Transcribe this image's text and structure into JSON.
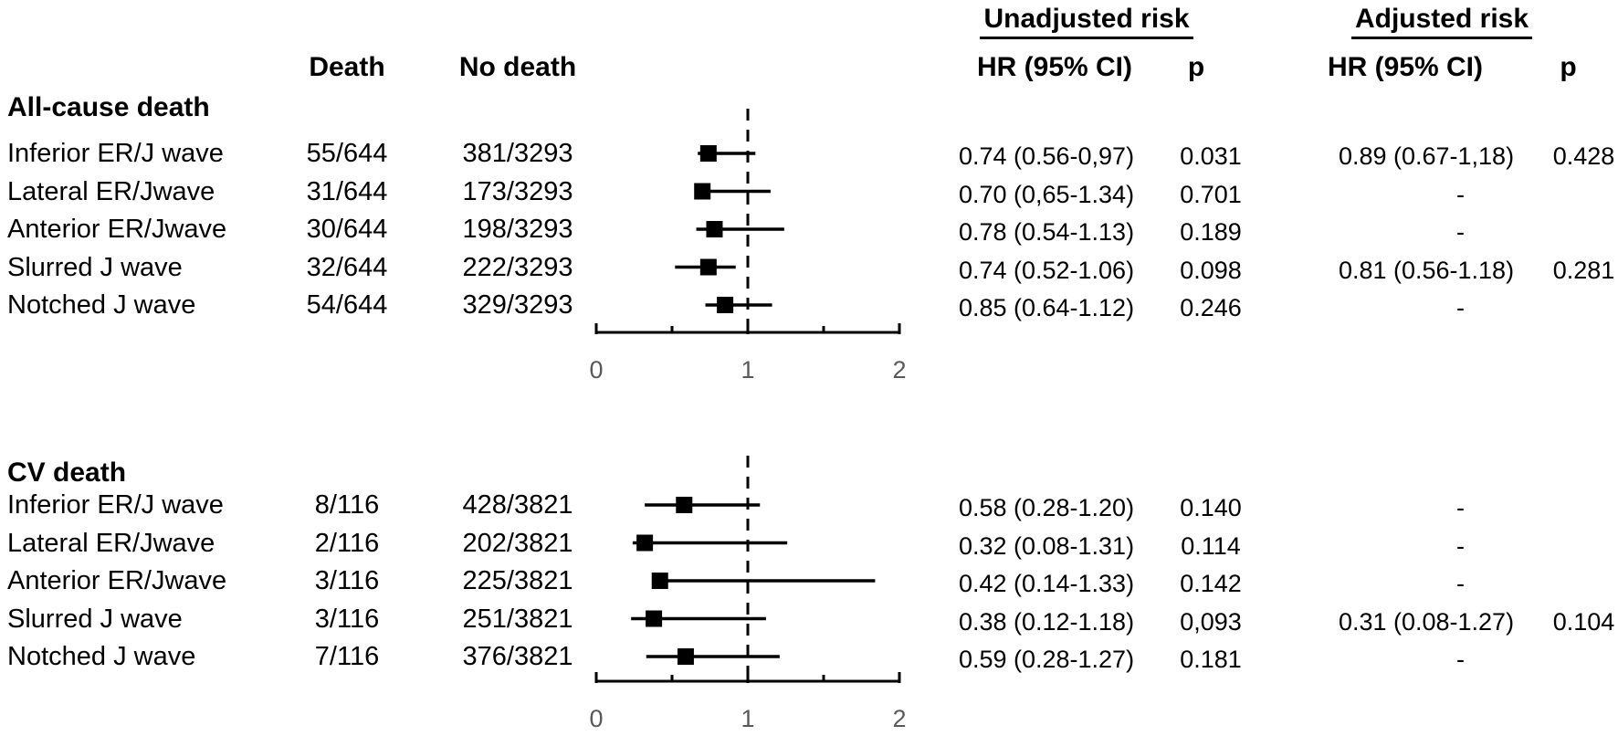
{
  "figure": {
    "type": "forest-plot-table",
    "background": "#ffffff"
  },
  "column_headers": {
    "death": "Death",
    "no_death": "No death",
    "unadjusted_group": "Unadjusted risk",
    "adjusted_group": "Adjusted risk",
    "hr_ci_unadjusted": "HR (95% CI)",
    "p_unadjusted": "p",
    "hr_ci_adjusted": "HR (95% CI)",
    "p_adjusted": "p"
  },
  "sections": [
    {
      "header": "All-cause death",
      "rows": [
        {
          "label": "Inferior ER/J wave",
          "death": "55/644",
          "no_death": "381/3293",
          "unadj_hr": "0.74 (0.56-0,97)",
          "unadj_p": "0.031",
          "adj_hr": "0.89 (0.67-1,18)",
          "adj_p": "0.428"
        },
        {
          "label": "Lateral ER/Jwave",
          "death": "31/644",
          "no_death": "173/3293",
          "unadj_hr": "0.70 (0,65-1.34)",
          "unadj_p": "0.701",
          "adj_hr": "-",
          "adj_p": ""
        },
        {
          "label": "Anterior ER/Jwave",
          "death": "30/644",
          "no_death": "198/3293",
          "unadj_hr": "0.78 (0.54-1.13)",
          "unadj_p": "0.189",
          "adj_hr": "-",
          "adj_p": ""
        },
        {
          "label": "Slurred J wave",
          "death": "32/644",
          "no_death": "222/3293",
          "unadj_hr": "0.74 (0.52-1.06)",
          "unadj_p": "0.098",
          "adj_hr": "0.81 (0.56-1.18)",
          "adj_p": "0.281"
        },
        {
          "label": "Notched J wave",
          "death": "54/644",
          "no_death": "329/3293",
          "unadj_hr": "0.85 (0.64-1.12)",
          "unadj_p": "0.246",
          "adj_hr": "-",
          "adj_p": ""
        }
      ]
    },
    {
      "header": "CV death",
      "rows": [
        {
          "label": "Inferior ER/J wave",
          "death": "8/116",
          "no_death": "428/3821",
          "unadj_hr": "0.58 (0.28-1.20)",
          "unadj_p": "0.140",
          "adj_hr": "-",
          "adj_p": ""
        },
        {
          "label": "Lateral ER/Jwave",
          "death": "2/116",
          "no_death": "202/3821",
          "unadj_hr": "0.32 (0.08-1.31)",
          "unadj_p": "0.114",
          "adj_hr": "-",
          "adj_p": ""
        },
        {
          "label": "Anterior ER/Jwave",
          "death": "3/116",
          "no_death": "225/3821",
          "unadj_hr": "0.42 (0.14-1.33)",
          "unadj_p": "0.142",
          "adj_hr": "-",
          "adj_p": ""
        },
        {
          "label": "Slurred J wave",
          "death": "3/116",
          "no_death": "251/3821",
          "unadj_hr": "0.38 (0.12-1.18)",
          "unadj_p": "0,093",
          "adj_hr": "0.31 (0.08-1.27)",
          "adj_p": "0.104"
        },
        {
          "label": "Notched J wave",
          "death": "7/116",
          "no_death": "376/3821",
          "unadj_hr": "0.59 (0.28-1.27)",
          "unadj_p": "0.181",
          "adj_hr": "-",
          "adj_p": ""
        }
      ]
    }
  ],
  "chart_data": [
    {
      "type": "forest",
      "title": "All-cause death",
      "x_axis": {
        "min": 0,
        "max": 2,
        "tick_labels": [
          "0",
          "1",
          "2"
        ],
        "minor_ticks": [
          0.5,
          1.5
        ],
        "reference_line": 1,
        "grid": false
      },
      "points": [
        {
          "label": "Inferior ER/J wave",
          "hr": 0.74,
          "ci_low": 0.56,
          "ci_high": 0.97,
          "drawn_low": 0.67,
          "drawn_high": 1.05
        },
        {
          "label": "Lateral ER/Jwave",
          "hr": 0.7,
          "ci_low": 0.65,
          "ci_high": 1.34,
          "drawn_low": 0.65,
          "drawn_high": 1.15
        },
        {
          "label": "Anterior ER/Jwave",
          "hr": 0.78,
          "ci_low": 0.54,
          "ci_high": 1.13,
          "drawn_low": 0.66,
          "drawn_high": 1.24
        },
        {
          "label": "Slurred J wave",
          "hr": 0.74,
          "ci_low": 0.52,
          "ci_high": 1.06,
          "drawn_low": 0.52,
          "drawn_high": 0.92
        },
        {
          "label": "Notched J wave",
          "hr": 0.85,
          "ci_low": 0.64,
          "ci_high": 1.12,
          "drawn_low": 0.72,
          "drawn_high": 1.16
        }
      ]
    },
    {
      "type": "forest",
      "title": "CV death",
      "x_axis": {
        "min": 0,
        "max": 2,
        "tick_labels": [
          "0",
          "1",
          "2"
        ],
        "minor_ticks": [
          0.5,
          1.5
        ],
        "reference_line": 1,
        "grid": false
      },
      "points": [
        {
          "label": "Inferior ER/J wave",
          "hr": 0.58,
          "ci_low": 0.28,
          "ci_high": 1.2,
          "drawn_low": 0.32,
          "drawn_high": 1.08
        },
        {
          "label": "Lateral ER/Jwave",
          "hr": 0.32,
          "ci_low": 0.08,
          "ci_high": 1.31,
          "drawn_low": 0.24,
          "drawn_high": 1.26
        },
        {
          "label": "Anterior ER/Jwave",
          "hr": 0.42,
          "ci_low": 0.14,
          "ci_high": 1.33,
          "drawn_low": 0.39,
          "drawn_high": 1.84
        },
        {
          "label": "Slurred J wave",
          "hr": 0.38,
          "ci_low": 0.12,
          "ci_high": 1.18,
          "drawn_low": 0.23,
          "drawn_high": 1.12
        },
        {
          "label": "Notched J wave",
          "hr": 0.59,
          "ci_low": 0.28,
          "ci_high": 1.27,
          "drawn_low": 0.33,
          "drawn_high": 1.21
        }
      ]
    }
  ],
  "colors": {
    "marker": "#000000",
    "ci_line": "#000000",
    "reference_line": "#000000",
    "axis": "#000000",
    "axis_tick_label": "#595959",
    "text": "#000000"
  }
}
